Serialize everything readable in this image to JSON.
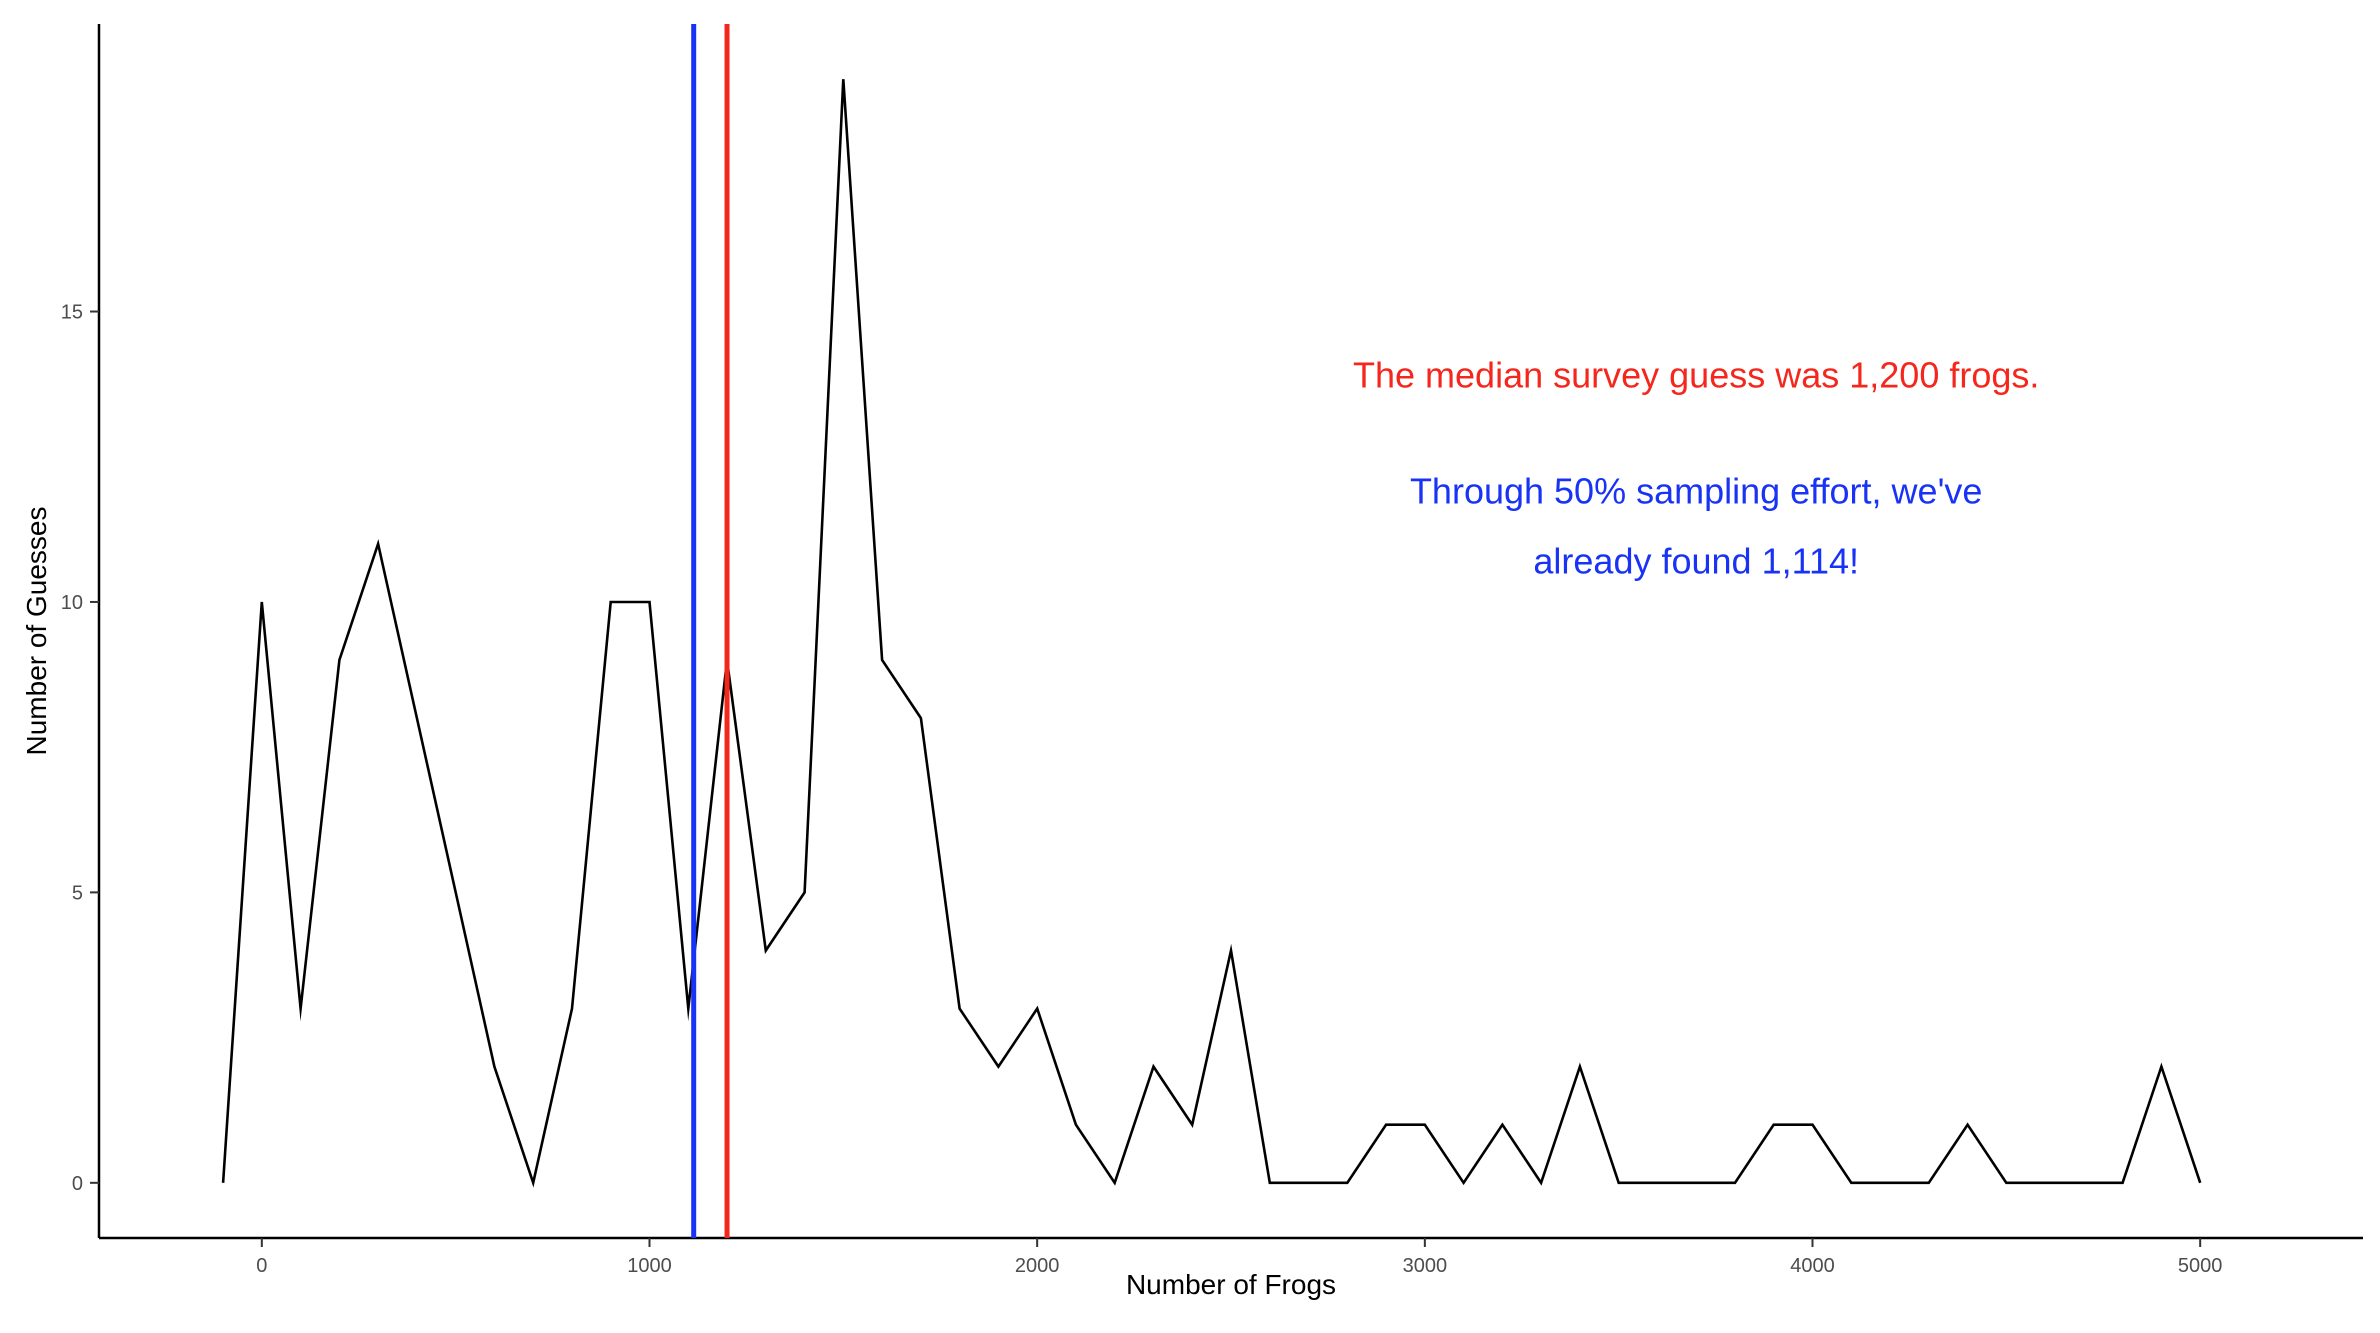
{
  "chart_data": {
    "type": "line",
    "title": "",
    "xlabel": "Number of Frogs",
    "ylabel": "Number of Guesses",
    "xlim": [
      -420,
      5420
    ],
    "ylim": [
      -0.95,
      19.95
    ],
    "xticks": [
      0,
      1000,
      2000,
      3000,
      4000,
      5000
    ],
    "xtick_labels": [
      "0",
      "1000",
      "2000",
      "3000",
      "4000",
      "5000"
    ],
    "yticks": [
      0,
      5,
      10,
      15
    ],
    "ytick_labels": [
      "0",
      "5",
      "10",
      "15"
    ],
    "grid": false,
    "legend": "none",
    "series": [
      {
        "color": "#000000",
        "points": [
          [
            -100,
            0
          ],
          [
            0,
            10
          ],
          [
            100,
            3
          ],
          [
            200,
            9
          ],
          [
            300,
            11
          ],
          [
            400,
            8
          ],
          [
            500,
            5
          ],
          [
            600,
            2
          ],
          [
            700,
            0
          ],
          [
            800,
            3
          ],
          [
            900,
            10
          ],
          [
            1000,
            10
          ],
          [
            1100,
            3
          ],
          [
            1200,
            9
          ],
          [
            1300,
            4
          ],
          [
            1400,
            5
          ],
          [
            1500,
            19
          ],
          [
            1600,
            9
          ],
          [
            1700,
            8
          ],
          [
            1800,
            3
          ],
          [
            1900,
            2
          ],
          [
            2000,
            3
          ],
          [
            2100,
            1
          ],
          [
            2200,
            0
          ],
          [
            2300,
            2
          ],
          [
            2400,
            1
          ],
          [
            2500,
            4
          ],
          [
            2600,
            0
          ],
          [
            2700,
            0
          ],
          [
            2800,
            0
          ],
          [
            2900,
            1
          ],
          [
            3000,
            1
          ],
          [
            3100,
            0
          ],
          [
            3200,
            1
          ],
          [
            3300,
            0
          ],
          [
            3400,
            2
          ],
          [
            3500,
            0
          ],
          [
            3600,
            0
          ],
          [
            3700,
            0
          ],
          [
            3800,
            0
          ],
          [
            3900,
            1
          ],
          [
            4000,
            1
          ],
          [
            4100,
            0
          ],
          [
            4200,
            0
          ],
          [
            4300,
            0
          ],
          [
            4400,
            1
          ],
          [
            4500,
            0
          ],
          [
            4600,
            0
          ],
          [
            4700,
            0
          ],
          [
            4800,
            0
          ],
          [
            4900,
            2
          ],
          [
            5000,
            0
          ]
        ]
      }
    ],
    "vlines": [
      {
        "x": 1114,
        "color": "#1833F5"
      },
      {
        "x": 1200,
        "color": "#F5271C"
      }
    ],
    "annotations": [
      {
        "text": "The median survey guess was 1,200 frogs.",
        "color": "#F5271C",
        "x": 3700,
        "y": 13.9
      },
      {
        "text": "Through 50% sampling effort, we've",
        "color": "#1833F5",
        "x": 3700,
        "y": 11.9
      },
      {
        "text": "already found 1,114!",
        "color": "#1833F5",
        "x": 3700,
        "y": 10.7
      }
    ]
  }
}
